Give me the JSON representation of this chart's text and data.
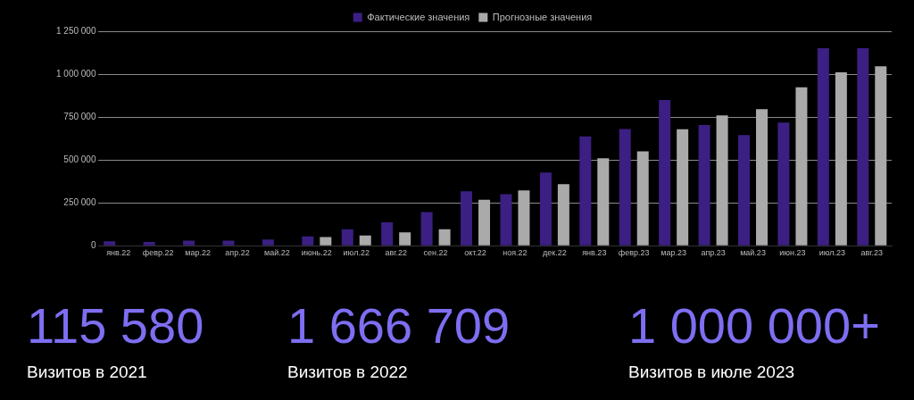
{
  "chart_data": {
    "type": "bar",
    "categories": [
      "янв.22",
      "февр.22",
      "мар.22",
      "апр.22",
      "май.22",
      "июнь.22",
      "июл.22",
      "авг.22",
      "сен.22",
      "окт.22",
      "ноя.22",
      "дек.22",
      "янв.23",
      "февр.23",
      "мар.23",
      "апр.23",
      "май.23",
      "июн.23",
      "июл.23",
      "авг.23"
    ],
    "series": [
      {
        "name": "Фактические значения",
        "color": "#3b1f82",
        "values": [
          26000,
          22000,
          30000,
          30000,
          36000,
          54000,
          96000,
          136000,
          196000,
          317000,
          300000,
          427000,
          637000,
          680000,
          849000,
          704000,
          645000,
          718000,
          1151000,
          1151000
        ]
      },
      {
        "name": "Прогнозные значения",
        "color": "#aaaaaa",
        "values": [
          null,
          null,
          null,
          null,
          null,
          50000,
          60000,
          78000,
          96000,
          268000,
          323000,
          359000,
          510000,
          550000,
          679000,
          760000,
          796000,
          923000,
          1010000,
          1046000
        ]
      }
    ],
    "ylim": [
      0,
      1250000
    ],
    "yticks": [
      0,
      {
        "value": 250000,
        "label": "250 000"
      },
      {
        "value": 500000,
        "label": "500 000"
      },
      {
        "value": 750000,
        "label": "750 000"
      },
      {
        "value": 1000000,
        "label": "1 000 000"
      },
      {
        "value": 1250000,
        "label": "1 250 000"
      }
    ],
    "grid": "y",
    "legend": "top",
    "annotations": [
      "115 580",
      "Визитов в 2021",
      "1 666 709",
      "Визитов в 2022",
      "1 000 000+",
      "Визитов в июле 2023"
    ]
  }
}
